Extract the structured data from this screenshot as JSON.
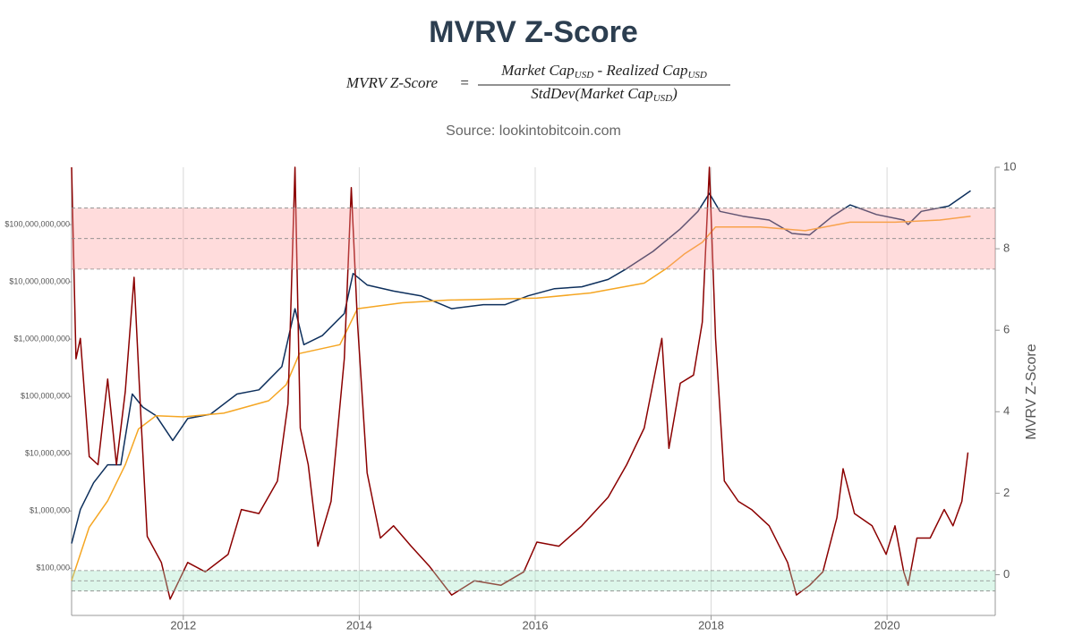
{
  "chart_data": {
    "type": "line",
    "title": "MVRV Z-Score",
    "formula": {
      "lhs": "MVRV Z-Score",
      "equals": "=",
      "numerator": [
        "Market Cap",
        "USD",
        " - Realized Cap",
        "USD"
      ],
      "denominator": [
        "StdDev(Market Cap",
        "USD",
        ")"
      ]
    },
    "subtitle": "Source: lookintobitcoin.com",
    "y2label": "MVRV Z-Score",
    "xlim": [
      2010.73,
      2021.23
    ],
    "xticks": [
      2012,
      2014,
      2016,
      2018,
      2020
    ],
    "ylog": true,
    "ylim": [
      15000,
      1000000000000
    ],
    "yticks": [
      {
        "value": 100000,
        "label": "$100,000"
      },
      {
        "value": 1000000,
        "label": "$1,000,000"
      },
      {
        "value": 10000000,
        "label": "$10,000,000"
      },
      {
        "value": 100000000,
        "label": "$100,000,000"
      },
      {
        "value": 1000000000,
        "label": "$1,000,000,000"
      },
      {
        "value": 10000000000,
        "label": "$10,000,000,000"
      },
      {
        "value": 100000000000,
        "label": "$100,000,000,000"
      }
    ],
    "y2lim": [
      -1,
      10
    ],
    "y2ticks": [
      0,
      2,
      4,
      6,
      8,
      10
    ],
    "grid": true,
    "bands": [
      {
        "axis": "y2",
        "range": [
          7.5,
          9
        ],
        "color": "#ff9a9a"
      },
      {
        "axis": "y2",
        "range": [
          -0.4,
          0.1
        ],
        "color": "#9fe6c2"
      }
    ],
    "series": [
      {
        "color": "#0d2f5c",
        "x": [
          2010.73,
          2010.83,
          2010.98,
          2011.14,
          2011.29,
          2011.42,
          2011.54,
          2011.69,
          2011.88,
          2012.05,
          2012.31,
          2012.61,
          2012.86,
          2013.12,
          2013.27,
          2013.37,
          2013.58,
          2013.83,
          2013.93,
          2014.09,
          2014.39,
          2014.7,
          2015.05,
          2015.41,
          2015.66,
          2015.92,
          2016.22,
          2016.53,
          2016.83,
          2017.04,
          2017.34,
          2017.65,
          2017.85,
          2017.98,
          2018.1,
          2018.36,
          2018.66,
          2018.92,
          2019.12,
          2019.38,
          2019.58,
          2019.88,
          2020.19,
          2020.24,
          2020.39,
          2020.7,
          2020.95
        ],
        "values": [
          270000,
          1060000,
          3100000,
          6400000,
          6400000,
          110000000,
          65000000,
          46000000,
          17000000,
          41000000,
          49000000,
          110000000,
          130000000,
          330000000,
          3400000000,
          800000000,
          1150000000,
          2800000000,
          14000000000,
          8800000000,
          6900000000,
          5700000000,
          3400000000,
          4000000000,
          4000000000,
          5700000000,
          7600000000,
          8200000000,
          11000000000,
          17000000000,
          34000000000,
          84000000000,
          170000000000,
          350000000000,
          170000000000,
          140000000000,
          120000000000,
          70000000000,
          66000000000,
          140000000000,
          220000000000,
          150000000000,
          120000000000,
          100000000000,
          170000000000,
          210000000000,
          390000000000
        ]
      },
      {
        "color": "#f5a623",
        "x": [
          2010.73,
          2010.93,
          2011.14,
          2011.34,
          2011.49,
          2011.69,
          2012.0,
          2012.46,
          2012.97,
          2013.17,
          2013.32,
          2013.78,
          2013.98,
          2014.49,
          2015.0,
          2016.02,
          2016.63,
          2017.24,
          2017.49,
          2017.7,
          2017.9,
          2018.05,
          2018.56,
          2019.07,
          2019.58,
          2020.09,
          2020.6,
          2020.95
        ],
        "values": [
          61000,
          520000,
          1500000,
          6400000,
          27000000,
          46000000,
          44000000,
          51000000,
          84000000,
          160000000,
          560000000,
          800000000,
          3400000000,
          4300000000,
          4800000000,
          5200000000,
          6400000000,
          9500000000,
          17000000000,
          31000000000,
          49000000000,
          91000000000,
          91000000000,
          78000000000,
          110000000000,
          110000000000,
          120000000000,
          140000000000
        ]
      },
      {
        "color": "#8b0000",
        "axis": "y2",
        "x": [
          2010.73,
          2010.78,
          2010.83,
          2010.93,
          2011.03,
          2011.14,
          2011.24,
          2011.34,
          2011.44,
          2011.52,
          2011.59,
          2011.75,
          2011.85,
          2011.95,
          2012.05,
          2012.25,
          2012.51,
          2012.66,
          2012.86,
          2013.07,
          2013.19,
          2013.27,
          2013.33,
          2013.42,
          2013.53,
          2013.68,
          2013.83,
          2013.91,
          2013.98,
          2014.09,
          2014.24,
          2014.39,
          2014.59,
          2014.8,
          2015.05,
          2015.31,
          2015.61,
          2015.87,
          2016.02,
          2016.27,
          2016.53,
          2016.83,
          2017.04,
          2017.24,
          2017.44,
          2017.52,
          2017.65,
          2017.8,
          2017.9,
          2017.98,
          2018.05,
          2018.15,
          2018.31,
          2018.46,
          2018.66,
          2018.87,
          2018.97,
          2019.12,
          2019.27,
          2019.43,
          2019.5,
          2019.63,
          2019.83,
          2019.99,
          2020.09,
          2020.19,
          2020.24,
          2020.34,
          2020.49,
          2020.65,
          2020.75,
          2020.85,
          2020.92
        ],
        "values": [
          10,
          5.3,
          5.8,
          2.9,
          2.7,
          4.8,
          2.7,
          4.5,
          7.3,
          3.8,
          0.94,
          0.3,
          -0.6,
          -0.15,
          0.3,
          0.07,
          0.5,
          1.6,
          1.5,
          2.3,
          4.2,
          10,
          3.6,
          2.7,
          0.7,
          1.8,
          5.3,
          9.5,
          6.2,
          2.5,
          0.9,
          1.2,
          0.7,
          0.2,
          -0.5,
          -0.15,
          -0.26,
          0.07,
          0.8,
          0.7,
          1.2,
          1.9,
          2.7,
          3.6,
          5.8,
          3.1,
          4.7,
          4.9,
          6.2,
          10,
          5.8,
          2.3,
          1.8,
          1.6,
          1.2,
          0.3,
          -0.5,
          -0.26,
          0.07,
          1.4,
          2.6,
          1.5,
          1.2,
          0.5,
          1.2,
          0.07,
          -0.26,
          0.9,
          0.9,
          1.6,
          1.2,
          1.8,
          3.0
        ]
      }
    ]
  }
}
